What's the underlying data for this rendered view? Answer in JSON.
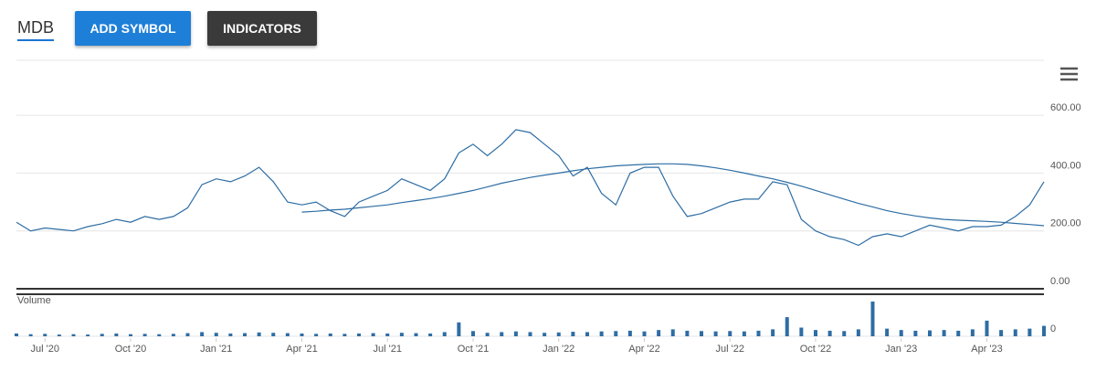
{
  "toolbar": {
    "symbol": "MDB",
    "buttons": [
      "ADD SYMBOL",
      "INDICATORS"
    ]
  },
  "chart_data": {
    "type": "line",
    "categories": [
      null,
      null,
      "Jul '20",
      null,
      null,
      null,
      null,
      null,
      "Oct '20",
      null,
      null,
      null,
      null,
      null,
      "Jan '21",
      null,
      null,
      null,
      null,
      null,
      "Apr '21",
      null,
      null,
      null,
      null,
      null,
      "Jul '21",
      null,
      null,
      null,
      null,
      null,
      "Oct '21",
      null,
      null,
      null,
      null,
      null,
      "Jan '22",
      null,
      null,
      null,
      null,
      null,
      "Apr '22",
      null,
      null,
      null,
      null,
      null,
      "Jul '22",
      null,
      null,
      null,
      null,
      null,
      "Oct '22",
      null,
      null,
      null,
      null,
      null,
      "Jan '23",
      null,
      null,
      null,
      null,
      null,
      "Apr '23",
      null,
      null,
      null,
      null
    ],
    "series": [
      {
        "color": "#2e6da4",
        "values": [
          230,
          200,
          210,
          205,
          200,
          215,
          225,
          240,
          230,
          250,
          240,
          250,
          280,
          360,
          380,
          370,
          390,
          420,
          370,
          300,
          290,
          300,
          270,
          250,
          300,
          320,
          340,
          380,
          360,
          340,
          380,
          470,
          500,
          460,
          500,
          550,
          540,
          500,
          460,
          390,
          420,
          330,
          290,
          400,
          420,
          420,
          320,
          250,
          260,
          280,
          300,
          310,
          310,
          370,
          360,
          240,
          200,
          180,
          170,
          150,
          180,
          190,
          180,
          200,
          220,
          210,
          200,
          215,
          215,
          220,
          250,
          290,
          370
        ]
      },
      {
        "color": "#2e6da4",
        "values": [
          null,
          null,
          null,
          null,
          null,
          null,
          null,
          null,
          null,
          null,
          null,
          null,
          null,
          null,
          null,
          null,
          null,
          null,
          null,
          null,
          265,
          268,
          272,
          275,
          280,
          285,
          290,
          298,
          305,
          312,
          320,
          330,
          340,
          352,
          365,
          375,
          385,
          393,
          400,
          408,
          415,
          420,
          425,
          428,
          430,
          432,
          432,
          430,
          425,
          418,
          410,
          400,
          390,
          380,
          368,
          355,
          340,
          325,
          310,
          295,
          283,
          270,
          260,
          252,
          245,
          240,
          237,
          235,
          233,
          230,
          226,
          222,
          218
        ]
      }
    ],
    "ylim": [
      0,
      790
    ],
    "yticks": [
      {
        "value": 0,
        "label": "0.00"
      },
      {
        "value": 200,
        "label": "200.00"
      },
      {
        "value": 400,
        "label": "400.00"
      },
      {
        "value": 600,
        "label": "600.00"
      }
    ],
    "grid": true,
    "volume": {
      "title": "Volume",
      "color": "#2e6da4",
      "values": [
        8,
        6,
        7,
        5,
        6,
        5,
        7,
        8,
        6,
        7,
        6,
        7,
        9,
        12,
        10,
        8,
        9,
        11,
        10,
        9,
        8,
        7,
        8,
        7,
        8,
        9,
        8,
        10,
        9,
        8,
        12,
        40,
        15,
        10,
        12,
        14,
        12,
        10,
        11,
        13,
        12,
        14,
        15,
        16,
        14,
        18,
        20,
        16,
        15,
        14,
        15,
        14,
        16,
        20,
        55,
        25,
        18,
        16,
        15,
        20,
        100,
        22,
        18,
        16,
        17,
        18,
        16,
        20,
        45,
        18,
        20,
        22,
        30
      ],
      "ylim": [
        0,
        100
      ],
      "yticks": [
        0
      ]
    }
  }
}
